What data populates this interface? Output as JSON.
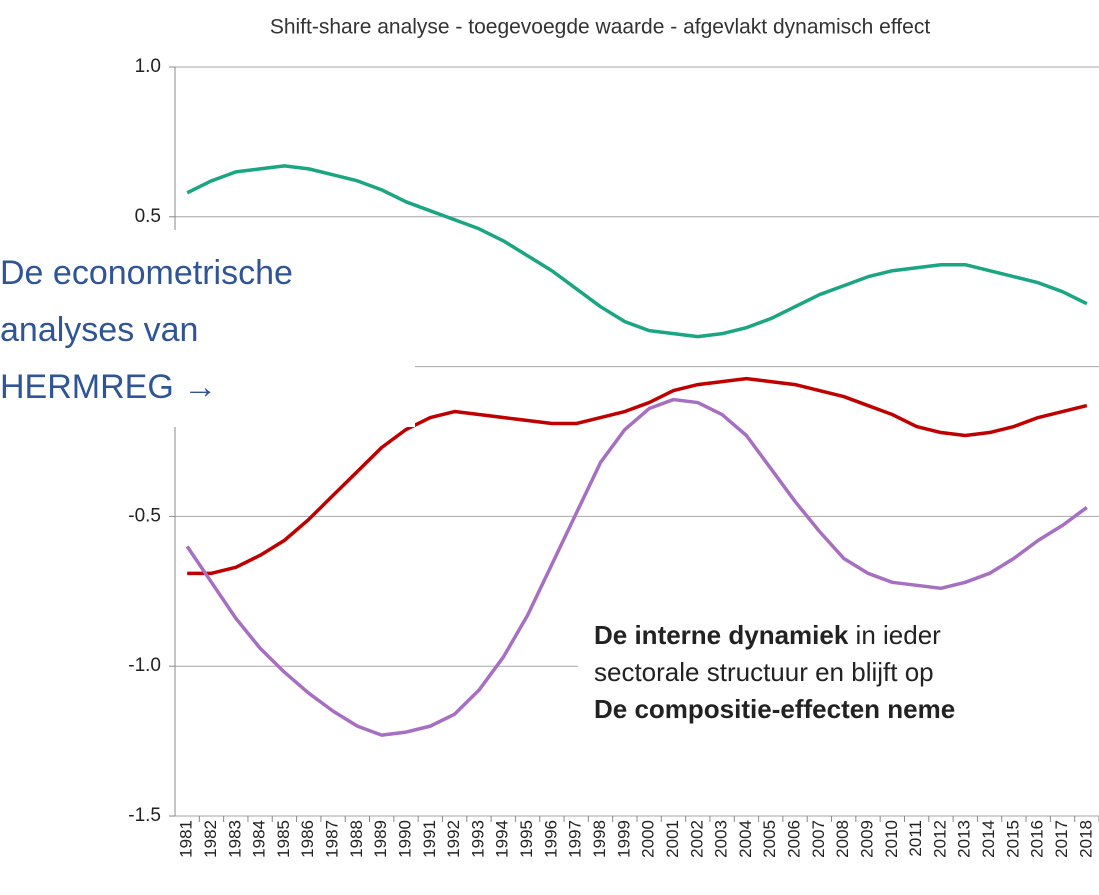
{
  "chart_data": {
    "type": "line",
    "title": "Shift-share analyse - toegevoegde waarde - afgevlakt dynamisch effect",
    "categories": [
      "1981",
      "1982",
      "1983",
      "1984",
      "1985",
      "1986",
      "1987",
      "1988",
      "1989",
      "1990",
      "1991",
      "1992",
      "1993",
      "1994",
      "1995",
      "1996",
      "1997",
      "1998",
      "1999",
      "2000",
      "2001",
      "2002",
      "2003",
      "2004",
      "2005",
      "2006",
      "2007",
      "2008",
      "2009",
      "2010",
      "2011",
      "2012",
      "2013",
      "2014",
      "2015",
      "2016",
      "2017",
      "2018"
    ],
    "series": [
      {
        "color": "#1aa584",
        "values": [
          0.58,
          0.62,
          0.65,
          0.66,
          0.67,
          0.66,
          0.64,
          0.62,
          0.59,
          0.55,
          0.52,
          0.49,
          0.46,
          0.42,
          0.37,
          0.32,
          0.26,
          0.2,
          0.15,
          0.12,
          0.11,
          0.1,
          0.11,
          0.13,
          0.16,
          0.2,
          0.24,
          0.27,
          0.3,
          0.32,
          0.33,
          0.34,
          0.34,
          0.32,
          0.3,
          0.28,
          0.25,
          0.21
        ]
      },
      {
        "color": "#c00000",
        "values": [
          -0.69,
          -0.69,
          -0.67,
          -0.63,
          -0.58,
          -0.51,
          -0.43,
          -0.35,
          -0.27,
          -0.21,
          -0.17,
          -0.15,
          -0.16,
          -0.17,
          -0.18,
          -0.19,
          -0.19,
          -0.17,
          -0.15,
          -0.12,
          -0.08,
          -0.06,
          -0.05,
          -0.04,
          -0.05,
          -0.06,
          -0.08,
          -0.1,
          -0.13,
          -0.16,
          -0.2,
          -0.22,
          -0.23,
          -0.22,
          -0.2,
          -0.17,
          -0.15,
          -0.13
        ]
      },
      {
        "color": "#a66fc2",
        "values": [
          -0.6,
          -0.72,
          -0.84,
          -0.94,
          -1.02,
          -1.09,
          -1.15,
          -1.2,
          -1.23,
          -1.22,
          -1.2,
          -1.16,
          -1.08,
          -0.97,
          -0.83,
          -0.66,
          -0.49,
          -0.32,
          -0.21,
          -0.14,
          -0.11,
          -0.12,
          -0.16,
          -0.23,
          -0.34,
          -0.45,
          -0.55,
          -0.64,
          -0.69,
          -0.72,
          -0.73,
          -0.74,
          -0.72,
          -0.69,
          -0.64,
          -0.58,
          -0.53,
          -0.47
        ]
      }
    ],
    "ylim": [
      -1.5,
      1.0
    ],
    "yticks": [
      {
        "value": 1,
        "label": "1.0"
      },
      0.5,
      0,
      -0.5,
      {
        "value": -1,
        "label": "-1.0"
      },
      -1.5
    ],
    "grid": true,
    "left_note": {
      "color": "#2f5597",
      "lines": [
        "De econometrische",
        "analyses van",
        "HERMREG →"
      ]
    },
    "right_note": {
      "lines": [
        [
          {
            "text": "De interne dynamiek",
            "bold": true
          },
          {
            "text": " in ieder"
          }
        ],
        [
          {
            "text": "sectorale structuur en blijft op"
          }
        ],
        [
          {
            "text": "De compositie-effecten neme",
            "bold": true
          }
        ]
      ]
    }
  }
}
